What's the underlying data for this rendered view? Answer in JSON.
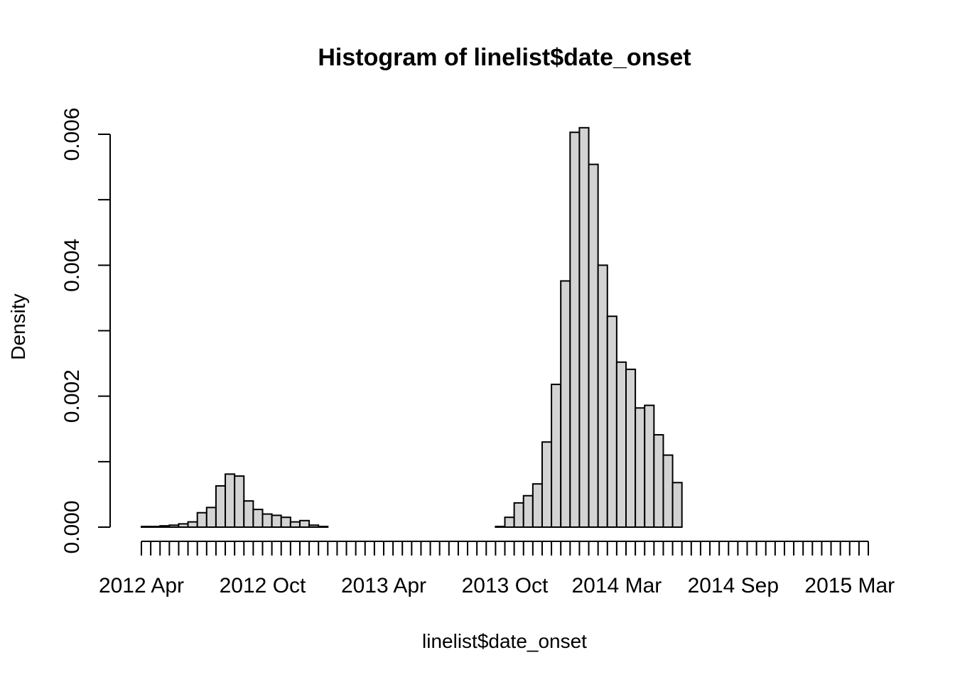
{
  "chart_data": {
    "type": "bar",
    "title": "Histogram of linelist$date_onset",
    "xlabel": "linelist$date_onset",
    "ylabel": "Density",
    "bin_width_days": 14,
    "x_start": "2012-04-01",
    "x_end": "2015-03-29",
    "xlim": [
      "2012-04-01",
      "2015-03-29"
    ],
    "ylim": [
      0,
      0.006
    ],
    "y_ticks": [
      "0.000",
      "0.002",
      "0.004",
      "0.006"
    ],
    "x_tick_labels": [
      "2012 Apr",
      "2012 Oct",
      "2013 Apr",
      "2013 Oct",
      "2014 Mar",
      "2014 Sep",
      "2015 Mar"
    ],
    "x_tick_label_dates": [
      "2012-04-01",
      "2012-09-30",
      "2013-03-31",
      "2013-09-29",
      "2014-03-16",
      "2014-09-07",
      "2015-03-01"
    ],
    "values": [
      1e-05,
      1e-05,
      2e-05,
      3e-05,
      5e-05,
      8e-05,
      0.00022,
      0.0003,
      0.00063,
      0.00081,
      0.00078,
      0.0004,
      0.00027,
      0.0002,
      0.00018,
      0.00015,
      8e-05,
      0.0001,
      3e-05,
      1e-05,
      0.0,
      0.0,
      0.0,
      0.0,
      0.0,
      0.0,
      0.0,
      0.0,
      0.0,
      0.0,
      0.0,
      0.0,
      0.0,
      0.0,
      0.0,
      0.0,
      0.0,
      0.0,
      1e-05,
      0.00015,
      0.00037,
      0.00048,
      0.00066,
      0.0013,
      0.00218,
      0.00376,
      0.00603,
      0.0061,
      0.00554,
      0.004,
      0.00322,
      0.00252,
      0.00241,
      0.00182,
      0.00186,
      0.00141,
      0.0011,
      0.00068
    ],
    "grid": false,
    "legend": "none",
    "colors": {
      "bar_fill": "#d3d3d3",
      "bar_stroke": "#000000"
    }
  }
}
